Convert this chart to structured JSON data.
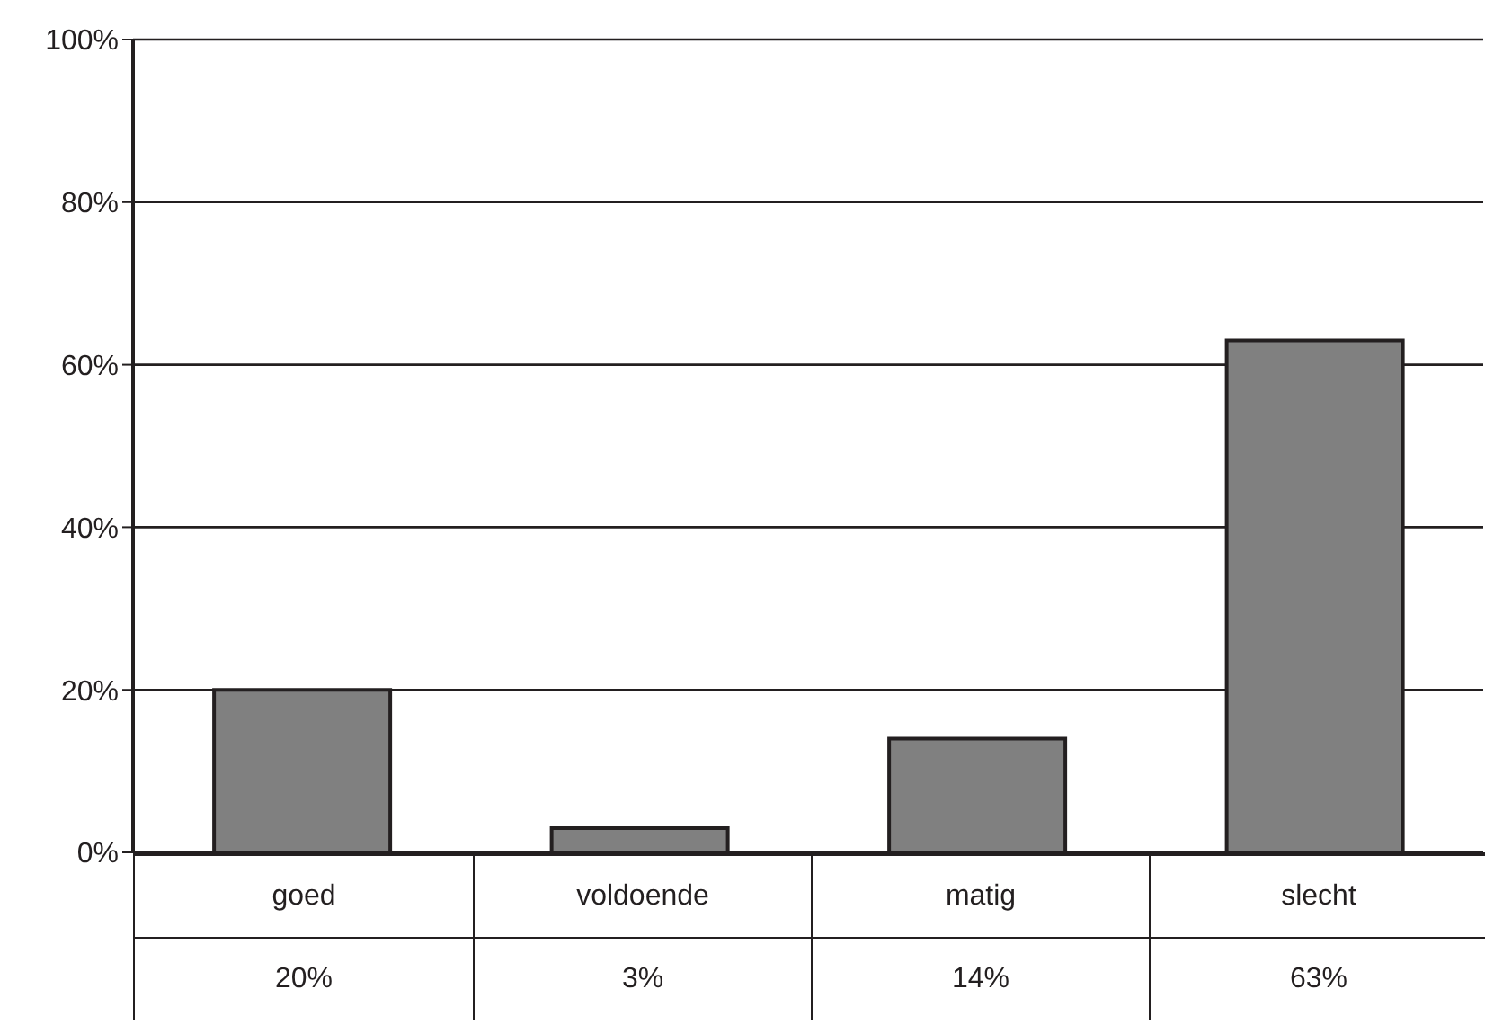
{
  "chart_data": {
    "type": "bar",
    "categories": [
      "goed",
      "voldoende",
      "matig",
      "slecht"
    ],
    "values": [
      20,
      3,
      14,
      63
    ],
    "color": "#808080",
    "value_labels": [
      "20%",
      "3%",
      "14%",
      "63%"
    ],
    "ylim": [
      0,
      100
    ],
    "yticks": [
      {
        "value": 0,
        "label": "0%"
      },
      {
        "value": 20,
        "label": "20%"
      },
      {
        "value": 40,
        "label": "40%"
      },
      {
        "value": 60,
        "label": "60%"
      },
      {
        "value": 80,
        "label": "80%"
      },
      {
        "value": 100,
        "label": "100%"
      }
    ],
    "grid": "y"
  }
}
